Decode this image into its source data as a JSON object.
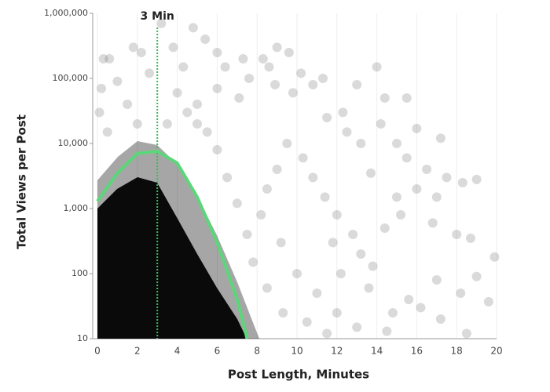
{
  "chart_data": {
    "type": "scatter",
    "x_label": "Post Length, Minutes",
    "y_label": "Total Views per Post",
    "xlim": [
      0,
      20
    ],
    "xticks": [
      0,
      2,
      4,
      6,
      8,
      10,
      12,
      14,
      16,
      18,
      20
    ],
    "ylim": [
      10,
      1000000
    ],
    "log_y": true,
    "yticks": [
      10,
      100,
      {
        "value": 1000,
        "label": "1,000"
      },
      {
        "value": 10000,
        "label": "10,000"
      },
      {
        "value": 100000,
        "label": "100,000"
      },
      {
        "value": 1000000,
        "label": "1,000,000"
      }
    ],
    "grid": true,
    "points": {
      "color": "#555555",
      "x": [
        0.3,
        0.6,
        1.8,
        2.2,
        3.2,
        4.8,
        5.4,
        3.8,
        4.3,
        6,
        6.4,
        7.3,
        7.6,
        8.3,
        8.6,
        9,
        9.6,
        10.2,
        10.8,
        11.3,
        8.9,
        9.8,
        7.1,
        6,
        5,
        4,
        1,
        0.2,
        2.6,
        11.5,
        12.3,
        13,
        14,
        14.4,
        15.5,
        12.5,
        13.2,
        14.2,
        15,
        16,
        17.2,
        15.5,
        16.5,
        17.5,
        18.3,
        19,
        16,
        17,
        15.2,
        16.8,
        18,
        18.7,
        19.9,
        19,
        18.2,
        17,
        16.2,
        17.2,
        15.6,
        14.8,
        13.6,
        13.2,
        12.8,
        12,
        11.4,
        10.8,
        10.3,
        9.5,
        9,
        8.5,
        8.2,
        9.2,
        10,
        11,
        12,
        13,
        14.5,
        11.5,
        10.5,
        9.3,
        8.5,
        7.8,
        7.5,
        7,
        6.5,
        6,
        5.5,
        5,
        4.5,
        3.5,
        2,
        1.5,
        0.5,
        0.1,
        19.6,
        18.5,
        13.8,
        12.2,
        11.8,
        14.4,
        15,
        13.7
      ],
      "y": [
        200000,
        200000,
        300000,
        250000,
        700000,
        600000,
        400000,
        300000,
        150000,
        250000,
        150000,
        200000,
        100000,
        200000,
        150000,
        300000,
        250000,
        120000,
        80000,
        100000,
        80000,
        60000,
        50000,
        70000,
        40000,
        60000,
        90000,
        70000,
        120000,
        25000,
        30000,
        80000,
        150000,
        50000,
        50000,
        15000,
        10000,
        20000,
        10000,
        17000,
        12000,
        6000,
        4000,
        3000,
        2500,
        2800,
        2000,
        1500,
        800,
        600,
        400,
        350,
        180,
        90,
        50,
        80,
        30,
        20,
        40,
        25,
        60,
        200,
        400,
        800,
        1500,
        3000,
        6000,
        10000,
        4000,
        2000,
        800,
        300,
        100,
        50,
        25,
        15,
        13,
        12,
        18,
        25,
        60,
        150,
        400,
        1200,
        3000,
        8000,
        15000,
        20000,
        30000,
        20000,
        20000,
        40000,
        15000,
        30000,
        37,
        12,
        130,
        100,
        300,
        500,
        1500,
        3500
      ]
    },
    "fit": {
      "color": "#5cd67a",
      "x": [
        0,
        1,
        2,
        3,
        4,
        5,
        6,
        7,
        7.5
      ],
      "values": [
        1300,
        3500,
        7000,
        7600,
        5000,
        1500,
        300,
        40,
        10
      ]
    },
    "annotation": {
      "label": "3 Min",
      "x": 3,
      "color": "#3cb95a"
    }
  }
}
